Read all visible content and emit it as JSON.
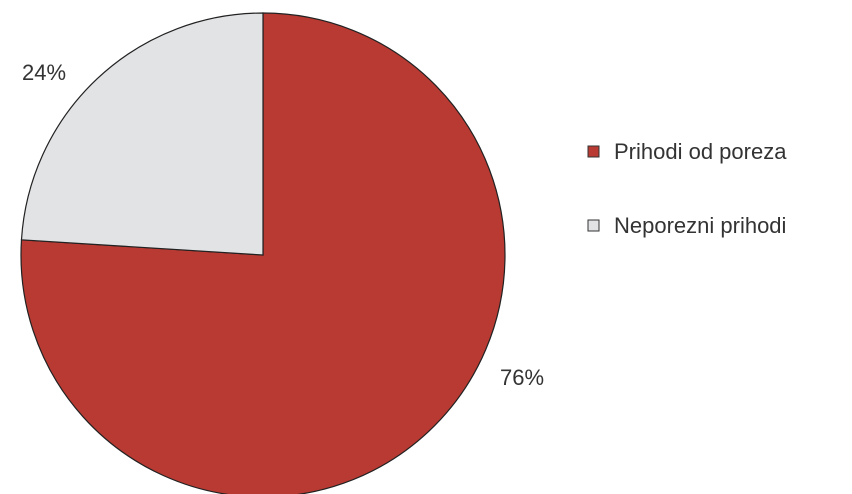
{
  "chart_data": {
    "type": "pie",
    "title": "",
    "legend_position": "right",
    "slices": [
      {
        "label": "Prihodi od poreza",
        "value": 76,
        "value_label": "76%",
        "color": "#b83a32"
      },
      {
        "label": "Neporezni prihodi",
        "value": 24,
        "value_label": "24%",
        "color": "#e2e3e5"
      }
    ]
  }
}
